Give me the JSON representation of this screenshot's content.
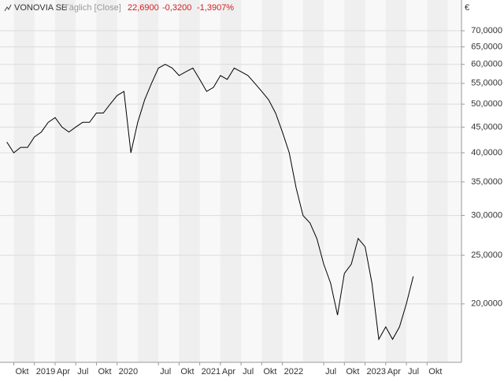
{
  "chart_data": {
    "type": "line",
    "title": "VONOVIA SE",
    "subtitle": "Täglich [Close]",
    "last_value": "22,6900",
    "change": "-0,3200",
    "change_percent": "-1,3907%",
    "unit": "€",
    "color": "#000000",
    "log_scale": true,
    "grid": true,
    "x": [
      "2018-09",
      "2018-10",
      "2018-11",
      "2018-12",
      "2019-01",
      "2019-02",
      "2019-03",
      "2019-04",
      "2019-05",
      "2019-06",
      "2019-07",
      "2019-08",
      "2019-09",
      "2019-10",
      "2019-11",
      "2019-12",
      "2020-01",
      "2020-02",
      "2020-03",
      "2020-04",
      "2020-05",
      "2020-06",
      "2020-07",
      "2020-08",
      "2020-09",
      "2020-10",
      "2020-11",
      "2020-12",
      "2021-01",
      "2021-02",
      "2021-03",
      "2021-04",
      "2021-05",
      "2021-06",
      "2021-07",
      "2021-08",
      "2021-09",
      "2021-10",
      "2021-11",
      "2021-12",
      "2022-01",
      "2022-02",
      "2022-03",
      "2022-04",
      "2022-05",
      "2022-06",
      "2022-07",
      "2022-08",
      "2022-09",
      "2022-10",
      "2022-11",
      "2022-12",
      "2023-01",
      "2023-02",
      "2023-03",
      "2023-04",
      "2023-05",
      "2023-06",
      "2023-07",
      "2023-08"
    ],
    "values": [
      42,
      40,
      41,
      41,
      43,
      44,
      46,
      47,
      45,
      44,
      45,
      46,
      46,
      48,
      48,
      50,
      52,
      53,
      40,
      46,
      51,
      55,
      59,
      60,
      59,
      57,
      58,
      59,
      56,
      53,
      54,
      57,
      56,
      59,
      58,
      57,
      55,
      53,
      51,
      48,
      44,
      40,
      34,
      30,
      29,
      27,
      24,
      22,
      19,
      23,
      24,
      27,
      26,
      22,
      17,
      18,
      17,
      18,
      20,
      22.69
    ],
    "xlim": [
      "2018-08",
      "2024-03"
    ],
    "xticks": [
      {
        "value": "2018-10",
        "label": "Okt"
      },
      {
        "value": "2019-01",
        "label": "2019"
      },
      {
        "value": "2019-04",
        "label": "Apr"
      },
      {
        "value": "2019-07",
        "label": "Jul"
      },
      {
        "value": "2019-10",
        "label": "Okt"
      },
      {
        "value": "2020-01",
        "label": "2020"
      },
      {
        "value": "2020-07",
        "label": "Jul"
      },
      {
        "value": "2020-10",
        "label": "Okt"
      },
      {
        "value": "2021-01",
        "label": "2021"
      },
      {
        "value": "2021-04",
        "label": "Apr"
      },
      {
        "value": "2021-07",
        "label": "Jul"
      },
      {
        "value": "2021-10",
        "label": "Okt"
      },
      {
        "value": "2022-01",
        "label": "2022"
      },
      {
        "value": "2022-07",
        "label": "Jul"
      },
      {
        "value": "2022-10",
        "label": "Okt"
      },
      {
        "value": "2023-01",
        "label": "2023"
      },
      {
        "value": "2023-04",
        "label": "Apr"
      },
      {
        "value": "2023-07",
        "label": "Jul"
      },
      {
        "value": "2023-10",
        "label": "Okt"
      }
    ],
    "ylim": [
      15.3,
      80.6
    ],
    "yticks": [
      {
        "value": 20,
        "label": "20,0000"
      },
      {
        "value": 25,
        "label": "25,0000"
      },
      {
        "value": 30,
        "label": "30,0000"
      },
      {
        "value": 35,
        "label": "35,0000"
      },
      {
        "value": 40,
        "label": "40,0000"
      },
      {
        "value": 45,
        "label": "45,0000"
      },
      {
        "value": 50,
        "label": "50,0000"
      },
      {
        "value": 55,
        "label": "55,0000"
      },
      {
        "value": 60,
        "label": "60,0000"
      },
      {
        "value": 65,
        "label": "65,0000"
      },
      {
        "value": 70,
        "label": "70,0000"
      }
    ]
  }
}
